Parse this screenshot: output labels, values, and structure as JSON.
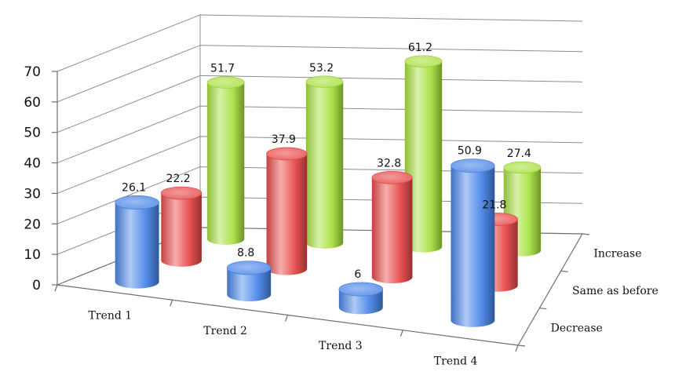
{
  "chart_data": {
    "type": "bar",
    "subtype": "3d-cylinder",
    "title": "",
    "xlabel": "",
    "ylabel": "",
    "ylim": [
      0,
      70
    ],
    "yticks": [
      "0",
      "10",
      "20",
      "30",
      "40",
      "50",
      "60",
      "70"
    ],
    "categories": [
      "Trend 1",
      "Trend 2",
      "Trend 3",
      "Trend 4"
    ],
    "grid": true,
    "legend": "none",
    "series": [
      {
        "name": "Decrease",
        "color": "#4a86e8",
        "values": [
          26.1,
          8.8,
          6,
          50.9
        ],
        "labels": [
          "26.1",
          "8.8",
          "6",
          "50.9"
        ]
      },
      {
        "name": "Same as before",
        "color": "#e84a4a",
        "values": [
          22.2,
          37.9,
          32.8,
          21.8
        ],
        "labels": [
          "22.2",
          "37.9",
          "32.8",
          "21.8"
        ]
      },
      {
        "name": "Increase",
        "color": "#a8e040",
        "values": [
          51.7,
          53.2,
          61.2,
          27.4
        ],
        "labels": [
          "51.7",
          "53.2",
          "61.2",
          "27.4"
        ]
      }
    ]
  }
}
